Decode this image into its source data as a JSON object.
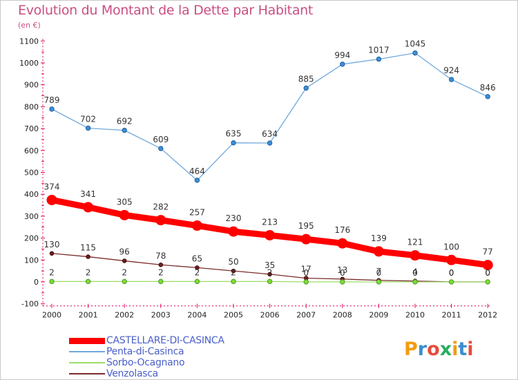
{
  "title": "Evolution du Montant de la Dette par Habitant",
  "subtitle": "(en €)",
  "logo": {
    "text": "Proxiti",
    "colors": [
      "#f39c12",
      "#3b8ed0",
      "#e74c3c",
      "#27ae60",
      "#f39c12",
      "#3b8ed0",
      "#e74c3c"
    ]
  },
  "chart_data": {
    "type": "line",
    "x": [
      "2000",
      "2001",
      "2002",
      "2003",
      "2004",
      "2005",
      "2006",
      "2007",
      "2008",
      "2009",
      "2010",
      "2011",
      "2012"
    ],
    "yticks": [
      "-100",
      "0",
      "100",
      "200",
      "300",
      "400",
      "500",
      "600",
      "700",
      "800",
      "900",
      "1000",
      "1100"
    ],
    "ylim": [
      -100,
      1100
    ],
    "grid": false,
    "legend_position": "bottom-left",
    "series": [
      {
        "name": "Penta-di-Casinca",
        "color": "#6fa8dc",
        "values": [
          789,
          702,
          692,
          609,
          464,
          635,
          634,
          885,
          994,
          1017,
          1045,
          924,
          846
        ],
        "labels": [
          "789",
          "702",
          "692",
          "609",
          "464",
          "635",
          "634",
          "885",
          "994",
          "1017",
          "1045",
          "924",
          "846"
        ]
      },
      {
        "name": "Venzolasca",
        "color": "#7a2b2b",
        "values": [
          130,
          115,
          96,
          78,
          65,
          50,
          35,
          17,
          13,
          7,
          4,
          0,
          0
        ],
        "labels": [
          "130",
          "115",
          "96",
          "78",
          "65",
          "50",
          "35",
          "17",
          "13",
          "7",
          "4",
          "0",
          "0"
        ]
      },
      {
        "name": "Sorbo-Ocagnano",
        "color": "#99dd66",
        "values": [
          2,
          2,
          2,
          2,
          2,
          2,
          2,
          0,
          0,
          0,
          0,
          0,
          0
        ],
        "labels": [
          "2",
          "2",
          "2",
          "2",
          "2",
          "2",
          "2",
          "0",
          "0",
          "0",
          "0",
          "0",
          "0"
        ]
      },
      {
        "name": "CASTELLARE-DI-CASINCA",
        "color": "#ff0000",
        "values": [
          374,
          341,
          305,
          282,
          257,
          230,
          213,
          195,
          176,
          139,
          121,
          100,
          77
        ],
        "labels": [
          "374",
          "341",
          "305",
          "282",
          "257",
          "230",
          "213",
          "195",
          "176",
          "139",
          "121",
          "100",
          "77"
        ]
      }
    ],
    "legend": [
      "CASTELLARE-DI-CASINCA",
      "Penta-di-Casinca",
      "Sorbo-Ocagnano",
      "Venzolasca"
    ]
  }
}
